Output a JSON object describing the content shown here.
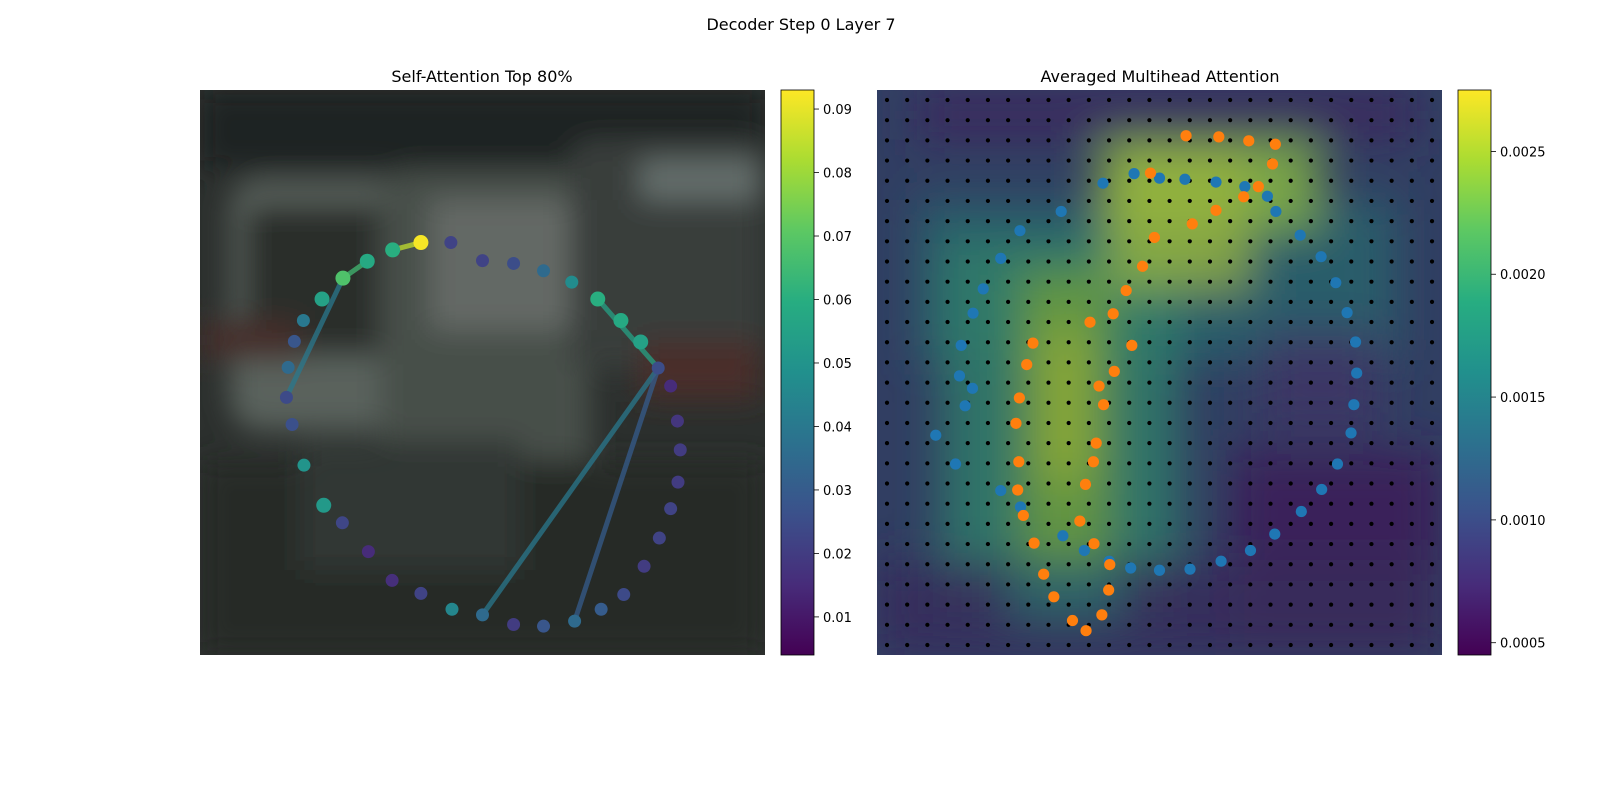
{
  "figure": {
    "suptitle": "Decoder Step 0 Layer 7"
  },
  "chart_data": [
    {
      "type": "scatter",
      "title": "Self-Attention Top 80%",
      "background": "blurred photo",
      "colormap": "viridis",
      "colorbar": {
        "ticks": [
          0.01,
          0.02,
          0.03,
          0.04,
          0.05,
          0.06,
          0.07,
          0.08,
          0.09
        ],
        "range": [
          0.004,
          0.093
        ]
      },
      "points": [
        {
          "x": 0.5,
          "y": 0.302,
          "v": 0.022
        },
        {
          "x": 0.555,
          "y": 0.307,
          "v": 0.025
        },
        {
          "x": 0.608,
          "y": 0.32,
          "v": 0.035
        },
        {
          "x": 0.658,
          "y": 0.34,
          "v": 0.047
        },
        {
          "x": 0.704,
          "y": 0.37,
          "v": 0.06
        },
        {
          "x": 0.745,
          "y": 0.408,
          "v": 0.058
        },
        {
          "x": 0.78,
          "y": 0.446,
          "v": 0.055
        },
        {
          "x": 0.811,
          "y": 0.492,
          "v": 0.025
        },
        {
          "x": 0.833,
          "y": 0.524,
          "v": 0.015
        },
        {
          "x": 0.845,
          "y": 0.586,
          "v": 0.018
        },
        {
          "x": 0.85,
          "y": 0.637,
          "v": 0.02
        },
        {
          "x": 0.846,
          "y": 0.694,
          "v": 0.02
        },
        {
          "x": 0.833,
          "y": 0.741,
          "v": 0.022
        },
        {
          "x": 0.813,
          "y": 0.793,
          "v": 0.022
        },
        {
          "x": 0.786,
          "y": 0.843,
          "v": 0.02
        },
        {
          "x": 0.75,
          "y": 0.893,
          "v": 0.024
        },
        {
          "x": 0.71,
          "y": 0.919,
          "v": 0.03
        },
        {
          "x": 0.663,
          "y": 0.94,
          "v": 0.035
        },
        {
          "x": 0.608,
          "y": 0.949,
          "v": 0.028
        },
        {
          "x": 0.555,
          "y": 0.946,
          "v": 0.02
        },
        {
          "x": 0.5,
          "y": 0.929,
          "v": 0.035
        },
        {
          "x": 0.446,
          "y": 0.919,
          "v": 0.045
        },
        {
          "x": 0.391,
          "y": 0.891,
          "v": 0.022
        },
        {
          "x": 0.34,
          "y": 0.868,
          "v": 0.016
        },
        {
          "x": 0.298,
          "y": 0.817,
          "v": 0.015
        },
        {
          "x": 0.252,
          "y": 0.766,
          "v": 0.023
        },
        {
          "x": 0.219,
          "y": 0.735,
          "v": 0.052
        },
        {
          "x": 0.184,
          "y": 0.664,
          "v": 0.05
        },
        {
          "x": 0.163,
          "y": 0.592,
          "v": 0.026
        },
        {
          "x": 0.153,
          "y": 0.544,
          "v": 0.024
        },
        {
          "x": 0.156,
          "y": 0.491,
          "v": 0.035
        },
        {
          "x": 0.167,
          "y": 0.445,
          "v": 0.028
        },
        {
          "x": 0.183,
          "y": 0.408,
          "v": 0.04
        },
        {
          "x": 0.216,
          "y": 0.37,
          "v": 0.055
        },
        {
          "x": 0.253,
          "y": 0.333,
          "v": 0.068
        },
        {
          "x": 0.296,
          "y": 0.303,
          "v": 0.058
        },
        {
          "x": 0.341,
          "y": 0.283,
          "v": 0.06
        },
        {
          "x": 0.391,
          "y": 0.27,
          "v": 0.092
        },
        {
          "x": 0.444,
          "y": 0.27,
          "v": 0.022
        }
      ],
      "edges": [
        {
          "from": 36,
          "to": 37,
          "v": 0.085
        },
        {
          "from": 34,
          "to": 35,
          "v": 0.065
        },
        {
          "from": 34,
          "to": 29,
          "v": 0.04
        },
        {
          "from": 4,
          "to": 7,
          "v": 0.055
        },
        {
          "from": 7,
          "to": 20,
          "v": 0.04
        },
        {
          "from": 7,
          "to": 17,
          "v": 0.03
        }
      ]
    },
    {
      "type": "heatmap",
      "title": "Averaged Multihead Attention",
      "colormap": "viridis",
      "colorbar": {
        "ticks": [
          0.0005,
          0.001,
          0.0015,
          0.002,
          0.0025
        ],
        "range": [
          0.00045,
          0.00275
        ]
      },
      "grid_points": {
        "cols": 28,
        "rows": 28
      },
      "series": [
        {
          "color": "#1f77b4",
          "points": [
            [
              0.5,
              0.156
            ],
            [
              0.545,
              0.158
            ],
            [
              0.6,
              0.163
            ],
            [
              0.651,
              0.171
            ],
            [
              0.691,
              0.188
            ],
            [
              0.706,
              0.215
            ],
            [
              0.749,
              0.257
            ],
            [
              0.786,
              0.295
            ],
            [
              0.812,
              0.341
            ],
            [
              0.832,
              0.394
            ],
            [
              0.847,
              0.446
            ],
            [
              0.849,
              0.501
            ],
            [
              0.844,
              0.557
            ],
            [
              0.839,
              0.607
            ],
            [
              0.815,
              0.662
            ],
            [
              0.787,
              0.707
            ],
            [
              0.751,
              0.746
            ],
            [
              0.704,
              0.786
            ],
            [
              0.661,
              0.815
            ],
            [
              0.609,
              0.834
            ],
            [
              0.554,
              0.848
            ],
            [
              0.5,
              0.85
            ],
            [
              0.449,
              0.846
            ],
            [
              0.411,
              0.834
            ],
            [
              0.367,
              0.815
            ],
            [
              0.329,
              0.789
            ],
            [
              0.254,
              0.738
            ],
            [
              0.219,
              0.709
            ],
            [
              0.139,
              0.662
            ],
            [
              0.104,
              0.611
            ],
            [
              0.156,
              0.559
            ],
            [
              0.169,
              0.528
            ],
            [
              0.146,
              0.506
            ],
            [
              0.149,
              0.452
            ],
            [
              0.17,
              0.395
            ],
            [
              0.188,
              0.352
            ],
            [
              0.219,
              0.298
            ],
            [
              0.253,
              0.249
            ],
            [
              0.326,
              0.215
            ],
            [
              0.4,
              0.165
            ],
            [
              0.455,
              0.148
            ]
          ]
        },
        {
          "color": "#ff7f0e",
          "points": [
            [
              0.484,
              0.147
            ],
            [
              0.547,
              0.081
            ],
            [
              0.605,
              0.083
            ],
            [
              0.658,
              0.09
            ],
            [
              0.705,
              0.096
            ],
            [
              0.7,
              0.131
            ],
            [
              0.675,
              0.171
            ],
            [
              0.649,
              0.189
            ],
            [
              0.6,
              0.213
            ],
            [
              0.558,
              0.237
            ],
            [
              0.491,
              0.261
            ],
            [
              0.47,
              0.312
            ],
            [
              0.441,
              0.355
            ],
            [
              0.418,
              0.396
            ],
            [
              0.377,
              0.411
            ],
            [
              0.276,
              0.448
            ],
            [
              0.265,
              0.486
            ],
            [
              0.252,
              0.545
            ],
            [
              0.246,
              0.59
            ],
            [
              0.251,
              0.658
            ],
            [
              0.249,
              0.708
            ],
            [
              0.259,
              0.753
            ],
            [
              0.278,
              0.802
            ],
            [
              0.295,
              0.857
            ],
            [
              0.313,
              0.897
            ],
            [
              0.346,
              0.939
            ],
            [
              0.37,
              0.957
            ],
            [
              0.398,
              0.929
            ],
            [
              0.41,
              0.885
            ],
            [
              0.412,
              0.84
            ],
            [
              0.384,
              0.803
            ],
            [
              0.359,
              0.763
            ],
            [
              0.369,
              0.698
            ],
            [
              0.383,
              0.658
            ],
            [
              0.388,
              0.625
            ],
            [
              0.401,
              0.557
            ],
            [
              0.393,
              0.524
            ],
            [
              0.42,
              0.498
            ],
            [
              0.451,
              0.452
            ]
          ]
        }
      ]
    }
  ]
}
